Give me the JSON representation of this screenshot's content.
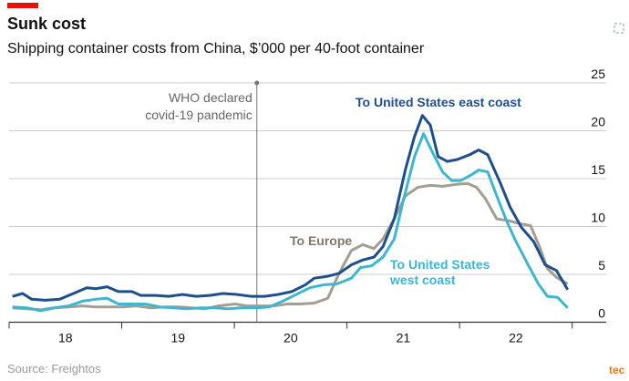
{
  "chart_data": {
    "type": "line",
    "title": "Sunk cost",
    "subtitle": "Shipping container costs from China, $’000 per 40-foot container",
    "source": "Source: Freightos",
    "logo_text": "tec",
    "annotation": {
      "lines": [
        "WHO declared",
        "covid-19 pandemic"
      ],
      "x": 2020.2
    },
    "xlim": [
      2018,
      2023.1
    ],
    "xticks": [
      {
        "value": 2018.5,
        "label": "18"
      },
      {
        "value": 2019.5,
        "label": "19"
      },
      {
        "value": 2020.5,
        "label": "20"
      },
      {
        "value": 2021.5,
        "label": "21"
      },
      {
        "value": 2022.5,
        "label": "22"
      }
    ],
    "xminor": [
      2018,
      2019,
      2020,
      2021,
      2022,
      2023
    ],
    "ylim": [
      0,
      25
    ],
    "yticks": [
      0,
      5,
      10,
      15,
      20,
      25
    ],
    "grid": true,
    "series": [
      {
        "name": "To United States east coast",
        "color": "#1f4e8c",
        "x": [
          2018.03,
          2018.12,
          2018.2,
          2018.32,
          2018.45,
          2018.57,
          2018.69,
          2018.77,
          2018.87,
          2018.97,
          2019.09,
          2019.17,
          2019.3,
          2019.42,
          2019.54,
          2019.66,
          2019.78,
          2019.9,
          2020.02,
          2020.15,
          2020.27,
          2020.39,
          2020.51,
          2020.63,
          2020.71,
          2020.83,
          2020.93,
          2021.04,
          2021.14,
          2021.24,
          2021.32,
          2021.42,
          2021.52,
          2021.6,
          2021.67,
          2021.74,
          2021.81,
          2021.89,
          2021.98,
          2022.09,
          2022.17,
          2022.25,
          2022.36,
          2022.45,
          2022.55,
          2022.66,
          2022.76,
          2022.86,
          2022.96
        ],
        "values": [
          2.7,
          3.0,
          2.4,
          2.3,
          2.4,
          3.0,
          3.6,
          3.5,
          3.7,
          3.2,
          3.2,
          2.8,
          2.8,
          2.7,
          2.9,
          2.7,
          2.8,
          3.0,
          2.9,
          2.7,
          2.7,
          2.9,
          3.2,
          3.9,
          4.6,
          4.8,
          5.1,
          6.0,
          6.5,
          6.8,
          7.9,
          10.8,
          16.0,
          19.4,
          21.6,
          20.6,
          17.3,
          16.8,
          17.0,
          17.5,
          18.0,
          17.5,
          14.6,
          12.0,
          9.9,
          8.4,
          6.0,
          5.4,
          3.4
        ]
      },
      {
        "name": "To United States west coast",
        "color": "#3fb5d0",
        "x": [
          2018.03,
          2018.16,
          2018.28,
          2018.4,
          2018.53,
          2018.65,
          2018.77,
          2018.87,
          2018.97,
          2019.09,
          2019.21,
          2019.34,
          2019.46,
          2019.58,
          2019.7,
          2019.82,
          2019.94,
          2020.06,
          2020.19,
          2020.31,
          2020.43,
          2020.55,
          2020.67,
          2020.79,
          2020.91,
          2021.04,
          2021.12,
          2021.22,
          2021.32,
          2021.42,
          2021.5,
          2021.6,
          2021.68,
          2021.77,
          2021.85,
          2021.93,
          2022.01,
          2022.09,
          2022.17,
          2022.25,
          2022.33,
          2022.41,
          2022.49,
          2022.6,
          2022.7,
          2022.78,
          2022.87,
          2022.96
        ],
        "values": [
          1.6,
          1.5,
          1.2,
          1.5,
          1.7,
          2.2,
          2.4,
          2.5,
          1.9,
          1.9,
          1.9,
          1.6,
          1.5,
          1.4,
          1.5,
          1.5,
          1.4,
          1.5,
          1.5,
          1.6,
          2.2,
          2.9,
          3.6,
          3.9,
          4.0,
          4.6,
          5.7,
          5.9,
          6.8,
          8.7,
          12.7,
          17.3,
          19.7,
          17.5,
          15.7,
          14.8,
          14.8,
          15.3,
          15.9,
          15.7,
          13.2,
          10.8,
          8.7,
          6.2,
          4.0,
          2.7,
          2.6,
          1.5
        ]
      },
      {
        "name": "To Europe",
        "color": "#a39e8f",
        "x": [
          2018.03,
          2018.16,
          2018.28,
          2018.4,
          2018.53,
          2018.65,
          2018.77,
          2018.89,
          2019.01,
          2019.13,
          2019.26,
          2019.38,
          2019.5,
          2019.62,
          2019.74,
          2019.86,
          2020.01,
          2020.11,
          2020.23,
          2020.35,
          2020.47,
          2020.59,
          2020.71,
          2020.83,
          2020.93,
          2021.04,
          2021.14,
          2021.24,
          2021.32,
          2021.42,
          2021.52,
          2021.63,
          2021.74,
          2021.85,
          2021.97,
          2022.07,
          2022.15,
          2022.23,
          2022.33,
          2022.44,
          2022.53,
          2022.63,
          2022.71,
          2022.78,
          2022.86,
          2022.96
        ],
        "values": [
          1.5,
          1.4,
          1.3,
          1.5,
          1.6,
          1.7,
          1.6,
          1.6,
          1.6,
          1.7,
          1.5,
          1.6,
          1.6,
          1.5,
          1.4,
          1.7,
          1.9,
          1.7,
          1.7,
          1.7,
          1.9,
          1.9,
          2.0,
          2.5,
          5.1,
          7.5,
          8.1,
          7.7,
          8.7,
          10.8,
          13.2,
          14.1,
          14.3,
          14.2,
          14.4,
          14.5,
          14.1,
          12.9,
          10.8,
          10.6,
          10.3,
          10.1,
          7.9,
          5.6,
          4.7,
          4.0
        ]
      }
    ]
  }
}
